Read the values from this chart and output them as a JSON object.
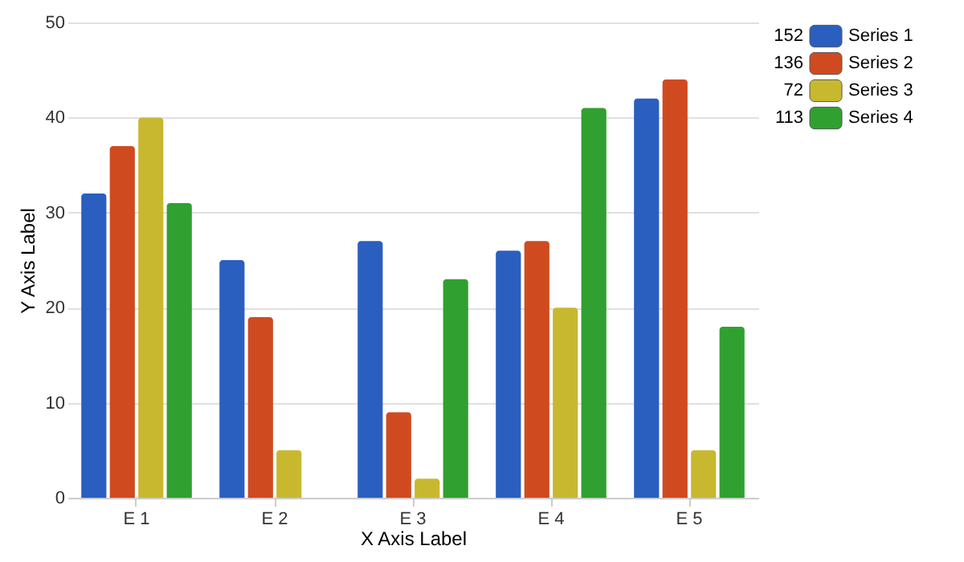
{
  "chart_data": {
    "type": "bar",
    "xlabel": "X Axis Label",
    "ylabel": "Y Axis Label",
    "categories": [
      "E 1",
      "E 2",
      "E 3",
      "E 4",
      "E 5"
    ],
    "series": [
      {
        "name": "Series 1",
        "color": "#2a5fc0",
        "values": [
          32,
          25,
          27,
          26,
          42
        ]
      },
      {
        "name": "Series 2",
        "color": "#d04a20",
        "values": [
          37,
          19,
          9,
          27,
          44
        ]
      },
      {
        "name": "Series 3",
        "color": "#c8b830",
        "values": [
          40,
          5,
          2,
          20,
          5
        ]
      },
      {
        "name": "Series 4",
        "color": "#30a030",
        "values": [
          31,
          0,
          23,
          41,
          18
        ]
      }
    ],
    "annotations": [
      "152",
      "136",
      "72",
      "113"
    ],
    "ylim": [
      0,
      50
    ],
    "yticks": [
      0,
      10,
      20,
      30,
      40,
      50
    ],
    "grid": "y",
    "legend": "top right"
  }
}
